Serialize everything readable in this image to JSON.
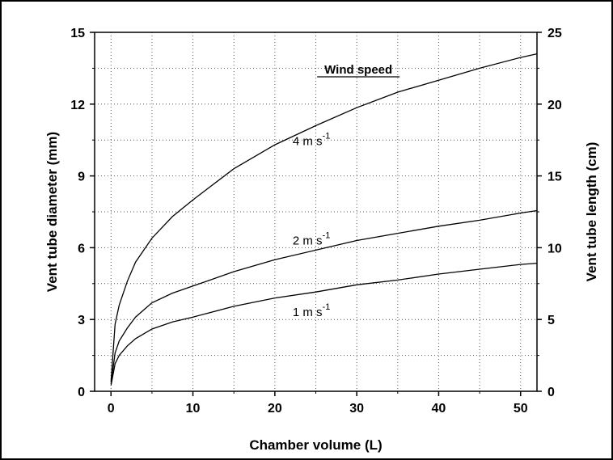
{
  "chart_data": {
    "type": "line",
    "xlabel": "Chamber volume (L)",
    "ylabel": "Vent tube diameter (mm)",
    "y2label": "Vent tube length (cm)",
    "xlim": [
      -2,
      52
    ],
    "ylim": [
      0,
      15
    ],
    "y2lim": [
      0,
      25
    ],
    "x_ticks": [
      0,
      10,
      20,
      30,
      40,
      50
    ],
    "y_ticks": [
      0,
      3,
      6,
      9,
      12,
      15
    ],
    "y2_ticks": [
      0,
      5,
      10,
      15,
      20,
      25
    ],
    "grid": true,
    "legend_title": "Wind speed",
    "series": [
      {
        "name": "4 m s-1",
        "label_main": "4 m",
        "label_unit": "s",
        "label_sup": "-1",
        "x": [
          0,
          0.5,
          1,
          2,
          3,
          5,
          7.5,
          10,
          15,
          20,
          25,
          30,
          35,
          40,
          45,
          50,
          52
        ],
        "y": [
          0.4,
          2.8,
          3.6,
          4.6,
          5.4,
          6.4,
          7.3,
          8.0,
          9.3,
          10.3,
          11.1,
          11.85,
          12.5,
          13.0,
          13.5,
          13.95,
          14.1
        ]
      },
      {
        "name": "2 m s-1",
        "label_main": "2 m",
        "label_unit": "s",
        "label_sup": "-1",
        "x": [
          0,
          0.5,
          1,
          2,
          3,
          5,
          7.5,
          10,
          15,
          20,
          25,
          30,
          35,
          40,
          45,
          50,
          52
        ],
        "y": [
          0.3,
          1.6,
          2.1,
          2.65,
          3.1,
          3.7,
          4.1,
          4.4,
          5.0,
          5.5,
          5.9,
          6.3,
          6.6,
          6.9,
          7.15,
          7.45,
          7.55
        ]
      },
      {
        "name": "1 m s-1",
        "label_main": "1 m",
        "label_unit": "s",
        "label_sup": "-1",
        "x": [
          0,
          0.5,
          1,
          2,
          3,
          5,
          7.5,
          10,
          15,
          20,
          25,
          30,
          35,
          40,
          45,
          50,
          52
        ],
        "y": [
          0.25,
          1.15,
          1.5,
          1.9,
          2.2,
          2.6,
          2.9,
          3.1,
          3.55,
          3.9,
          4.15,
          4.45,
          4.65,
          4.9,
          5.1,
          5.3,
          5.35
        ]
      }
    ]
  }
}
